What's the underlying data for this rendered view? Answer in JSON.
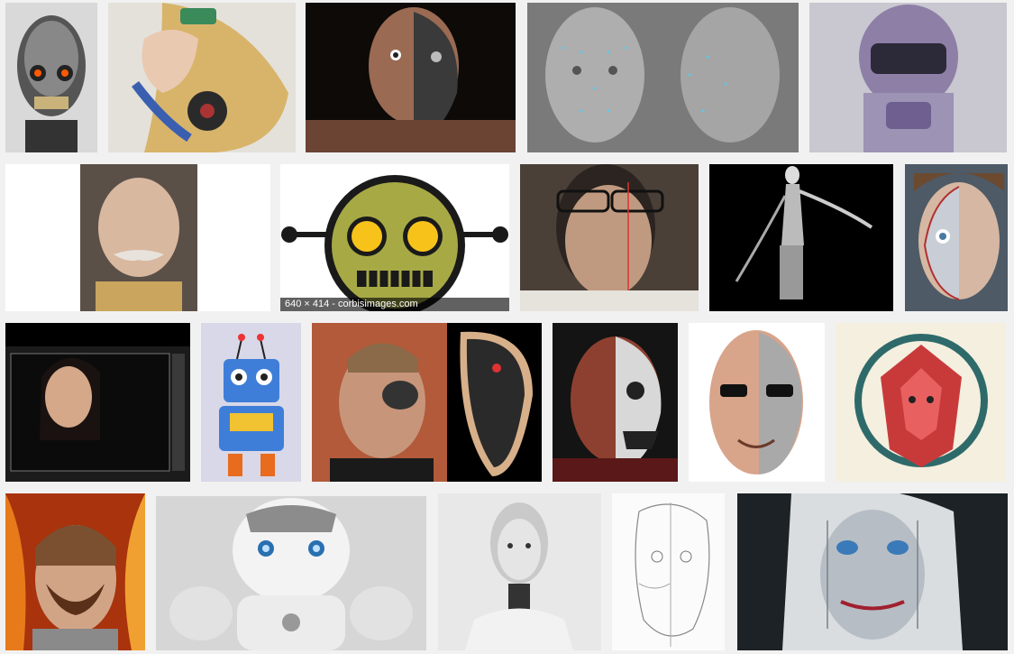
{
  "image_results": {
    "hover_caption": "640 × 414 - corbisimages.com"
  }
}
